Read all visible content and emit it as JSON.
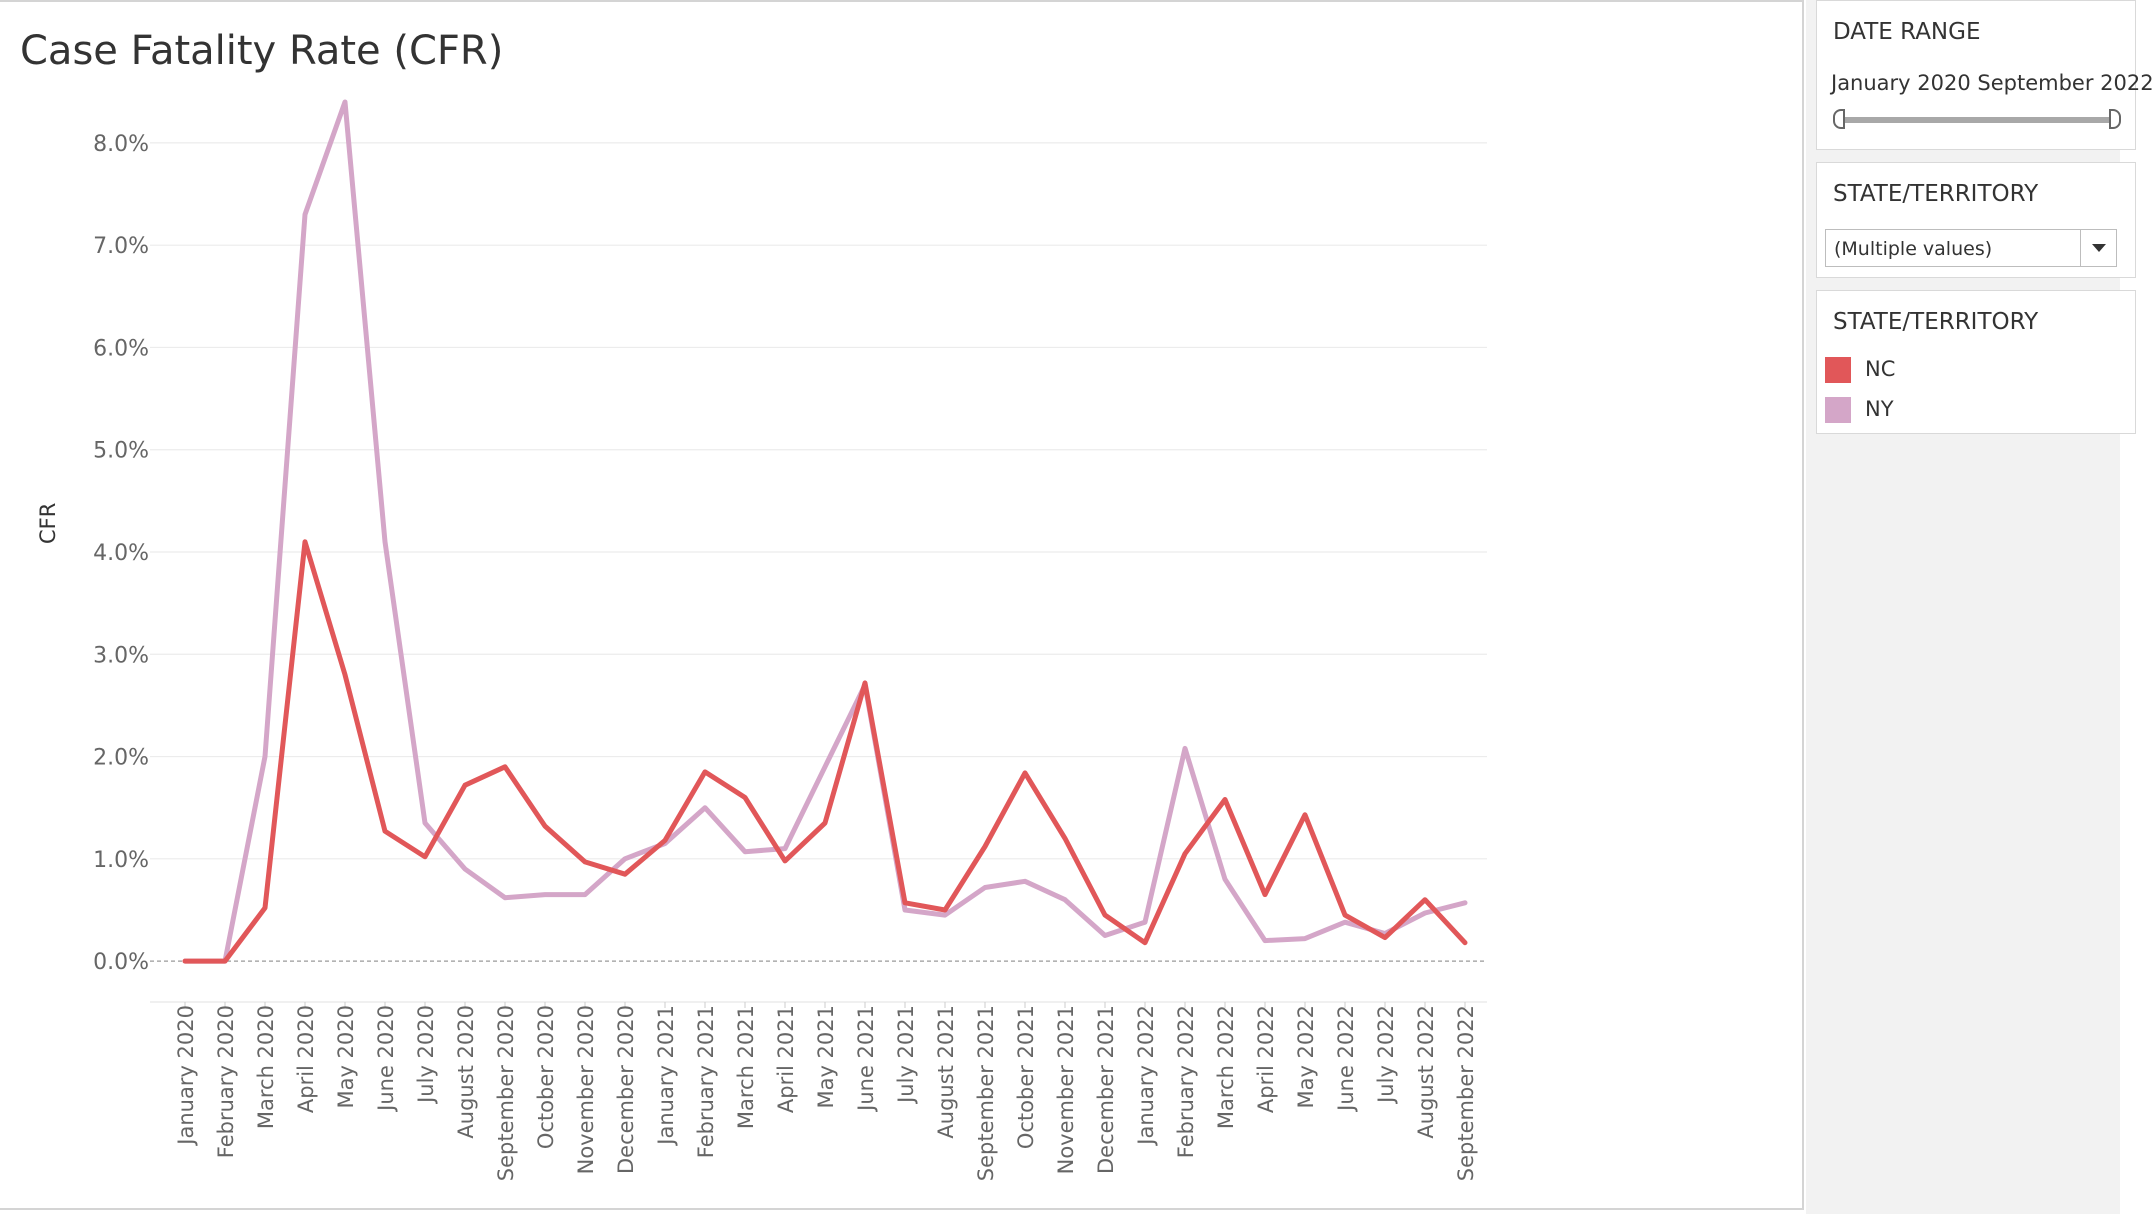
{
  "chart_data": {
    "type": "line",
    "title": "Case Fatality Rate (CFR)",
    "ylabel": "CFR",
    "xlabel": "",
    "ylim": [
      -0.4,
      8.4
    ],
    "yticks": [
      0,
      1,
      2,
      3,
      4,
      5,
      6,
      7,
      8
    ],
    "ytick_labels": [
      "0.0%",
      "1.0%",
      "2.0%",
      "3.0%",
      "4.0%",
      "5.0%",
      "6.0%",
      "7.0%",
      "8.0%"
    ],
    "grid": true,
    "categories": [
      "January 2020",
      "February 2020",
      "March 2020",
      "April 2020",
      "May 2020",
      "June 2020",
      "July 2020",
      "August 2020",
      "September 2020",
      "October 2020",
      "November 2020",
      "December 2020",
      "January 2021",
      "February 2021",
      "March 2021",
      "April 2021",
      "May 2021",
      "June 2021",
      "July 2021",
      "August 2021",
      "September 2021",
      "October 2021",
      "November 2021",
      "December 2021",
      "January 2022",
      "February 2022",
      "March 2022",
      "April 2022",
      "May 2022",
      "June 2022",
      "July 2022",
      "August 2022",
      "September 2022"
    ],
    "series": [
      {
        "name": "NY",
        "color": "#d4a6c8",
        "values": [
          0.0,
          0.0,
          2.0,
          7.3,
          8.4,
          4.1,
          1.35,
          0.9,
          0.62,
          0.65,
          0.65,
          1.0,
          1.15,
          1.5,
          1.07,
          1.1,
          1.9,
          2.7,
          0.5,
          0.45,
          0.72,
          0.78,
          0.6,
          0.25,
          0.38,
          2.08,
          0.8,
          0.2,
          0.22,
          0.38,
          0.27,
          0.47,
          0.57
        ]
      },
      {
        "name": "NC",
        "color": "#e15759",
        "values": [
          0.0,
          0.0,
          0.52,
          4.1,
          2.8,
          1.27,
          1.02,
          1.72,
          1.9,
          1.32,
          0.97,
          0.85,
          1.18,
          1.85,
          1.6,
          0.98,
          1.35,
          2.72,
          0.57,
          0.5,
          1.12,
          1.84,
          1.2,
          0.45,
          0.18,
          1.05,
          1.58,
          0.65,
          1.43,
          0.45,
          0.23,
          0.6,
          0.18
        ]
      }
    ]
  },
  "sidebar": {
    "date_range": {
      "title": "DATE RANGE",
      "text": "January 2020 September 2022"
    },
    "state_filter": {
      "title": "STATE/TERRITORY",
      "value": "(Multiple values)"
    },
    "legend": {
      "title": "STATE/TERRITORY",
      "items": [
        {
          "label": "NC",
          "color": "#e15759"
        },
        {
          "label": "NY",
          "color": "#d4a6c8"
        }
      ]
    }
  }
}
